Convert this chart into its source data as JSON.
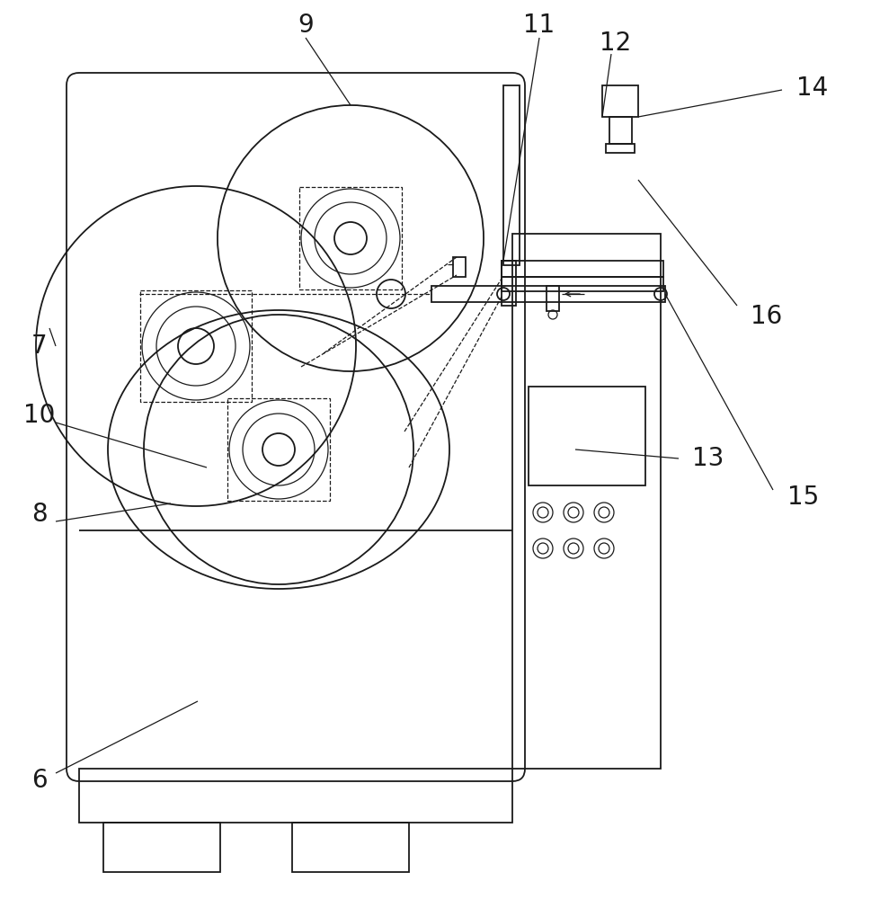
{
  "bg_color": "#ffffff",
  "lc": "#1a1a1a",
  "lw": 1.3,
  "tlw": 0.9,
  "figsize": [
    9.69,
    10.0
  ],
  "dpi": 100,
  "label_fs": 20
}
